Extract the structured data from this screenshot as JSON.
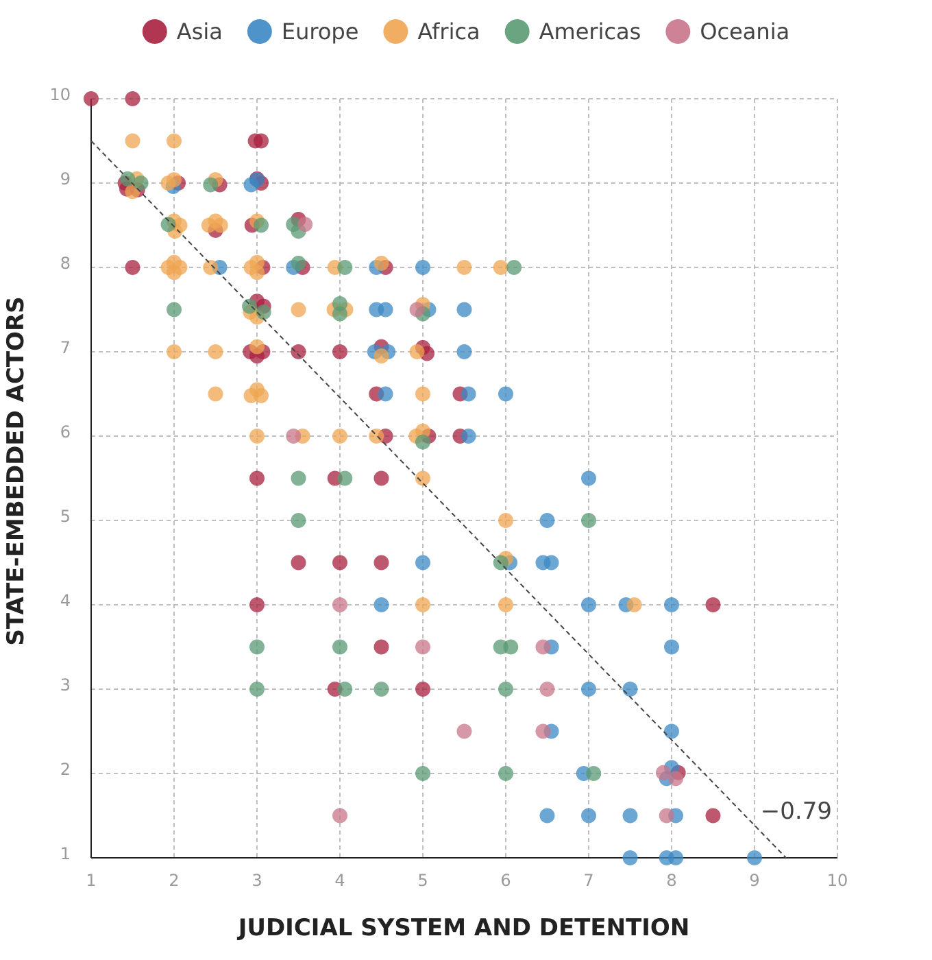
{
  "chart_data": {
    "type": "scatter",
    "x_label": "JUDICIAL SYSTEM AND DETENTION",
    "y_label": "STATE-EMBEDDED ACTORS",
    "xlim": [
      1,
      10
    ],
    "ylim": [
      1,
      10
    ],
    "xticks": [
      1,
      2,
      3,
      4,
      5,
      6,
      7,
      8,
      9,
      10
    ],
    "yticks": [
      1,
      2,
      3,
      4,
      5,
      6,
      7,
      8,
      9,
      10
    ],
    "grid": true,
    "legend_position": "top",
    "series": [
      {
        "name": "Asia",
        "color": "#a8203f",
        "x": [
          1,
          1.5,
          2.98,
          3.05,
          1.41,
          1.43,
          1.56,
          2.05,
          2.55,
          3,
          3.05,
          3.5,
          2.5,
          2.94,
          1.5,
          3.07,
          3.55,
          4.55,
          3,
          3.08,
          2.92,
          3,
          3.07,
          3.5,
          4,
          4.5,
          5,
          5.05,
          4.44,
          5.45,
          4.55,
          5.07,
          5.45,
          3,
          3.94,
          4.5,
          3.5,
          4,
          4.5,
          3,
          8.5,
          4.5,
          3.94,
          5,
          8.08,
          8.5
        ],
        "values": [
          10,
          10,
          9.5,
          9.5,
          9,
          8.93,
          8.92,
          9,
          8.98,
          9.05,
          9,
          8.57,
          8.44,
          8.5,
          8,
          8,
          8,
          8,
          7.6,
          7.54,
          7,
          6.95,
          7,
          7,
          7,
          7.06,
          7.05,
          6.98,
          6.5,
          6.5,
          6,
          6,
          6,
          5.5,
          5.5,
          5.5,
          4.5,
          4.5,
          4.5,
          4,
          4,
          3.5,
          3,
          3,
          2.01,
          1.5
        ]
      },
      {
        "name": "Europe",
        "color": "#3b88c4",
        "x": [
          1.99,
          2.93,
          3,
          2.55,
          3.44,
          4.44,
          5,
          4.44,
          4.55,
          5.07,
          5.5,
          4.42,
          4.58,
          5.5,
          4.55,
          5.55,
          6,
          5.55,
          7,
          6.5,
          5,
          6.05,
          6.45,
          6.55,
          4.5,
          7,
          7.45,
          8,
          6.55,
          8,
          7,
          7.5,
          6.55,
          8,
          6.94,
          8,
          7.94,
          6.5,
          7,
          7.5,
          8.05,
          7.5,
          7.94,
          8.05,
          9
        ],
        "values": [
          8.96,
          8.98,
          9.04,
          8,
          8,
          8,
          8,
          7.5,
          7.5,
          7.5,
          7.5,
          7,
          7,
          7,
          6.5,
          6.5,
          6.5,
          6,
          5.5,
          5,
          4.5,
          4.5,
          4.5,
          4.5,
          4,
          4,
          4,
          4,
          3.5,
          3.5,
          3,
          3,
          2.5,
          2.5,
          2,
          2.07,
          1.94,
          1.5,
          1.5,
          1.5,
          1.5,
          1,
          1,
          1,
          1
        ]
      },
      {
        "name": "Africa",
        "color": "#efa552",
        "x": [
          1.5,
          2,
          1.55,
          1.5,
          1.93,
          2,
          2.5,
          3,
          2,
          2.07,
          2.01,
          2.42,
          2.5,
          2.56,
          1.93,
          2,
          2.07,
          2,
          2.44,
          2.93,
          3,
          3,
          3.94,
          4.5,
          5.5,
          5.94,
          2.92,
          3,
          3.5,
          3.93,
          4.07,
          5,
          2,
          2.5,
          3,
          4.5,
          4.93,
          2.5,
          2.93,
          3.05,
          3,
          5,
          3,
          3.55,
          4,
          4.44,
          4.92,
          5,
          5,
          6,
          6,
          5,
          6,
          7.55
        ],
        "values": [
          9.5,
          9.5,
          9.05,
          8.9,
          9,
          9.04,
          9.04,
          8.55,
          8.55,
          8.5,
          8.43,
          8.5,
          8.55,
          8.5,
          8,
          8.06,
          8,
          7.94,
          8,
          8,
          8.06,
          7.94,
          8,
          8.05,
          8,
          8,
          7.47,
          7.41,
          7.5,
          7.5,
          7.5,
          7.56,
          7,
          7,
          7.06,
          6.95,
          7,
          6.5,
          6.48,
          6.48,
          6.55,
          6.5,
          6,
          6,
          6,
          6,
          6,
          6.06,
          5.5,
          5,
          4.55,
          4,
          4,
          4
        ]
      },
      {
        "name": "Americas",
        "color": "#5a9a73",
        "x": [
          1.44,
          1.6,
          2.44,
          1.93,
          3.05,
          3.44,
          3.5,
          3.5,
          4.06,
          6.1,
          2,
          2.91,
          3.08,
          4,
          4,
          5,
          5,
          3.5,
          4.06,
          3.5,
          7,
          5.94,
          3,
          4,
          5.94,
          6.06,
          3,
          4.06,
          4.5,
          6,
          5,
          6,
          7.06
        ],
        "values": [
          9.05,
          9,
          8.98,
          8.51,
          8.5,
          8.51,
          8.43,
          8.05,
          8,
          8,
          7.5,
          7.54,
          7.47,
          7.57,
          7.45,
          7.45,
          5.93,
          5.5,
          5.5,
          5,
          5,
          4.5,
          3.5,
          3.5,
          3.5,
          3.5,
          3,
          3,
          3,
          3,
          2,
          2,
          2
        ]
      },
      {
        "name": "Oceania",
        "color": "#c8758a",
        "x": [
          3.58,
          4.93,
          3.44,
          4,
          6.45,
          5,
          6.5,
          5.5,
          6.45,
          7.9,
          8.05,
          7.94,
          4
        ],
        "values": [
          8.51,
          7.5,
          6,
          4,
          3.5,
          3.5,
          3,
          2.5,
          2.5,
          2.01,
          1.94,
          1.5,
          1.5
        ]
      }
    ],
    "trend_line": {
      "x": [
        1,
        9.38
      ],
      "values": [
        9.5,
        1
      ]
    },
    "annotation": "−0.79"
  }
}
